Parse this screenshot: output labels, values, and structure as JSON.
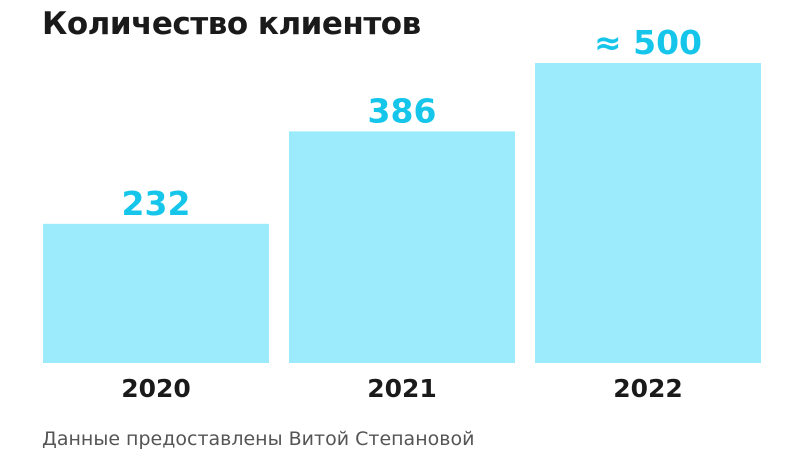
{
  "chart_data": {
    "type": "bar",
    "title": "Количество клиентов",
    "categories": [
      "2020",
      "2021",
      "2022"
    ],
    "values": [
      232,
      386,
      500
    ],
    "value_labels": [
      "232",
      "386",
      "≈ 500"
    ],
    "xlabel": "",
    "ylabel": "",
    "grid": false,
    "legend": "none",
    "source": "Данные предоставлены Витой Степановой"
  },
  "colors": {
    "bar": "#9bebfc",
    "value_label": "#16c6ea",
    "category_label": "#1a1a1a",
    "title": "#1a1a1a",
    "source": "#555555"
  }
}
